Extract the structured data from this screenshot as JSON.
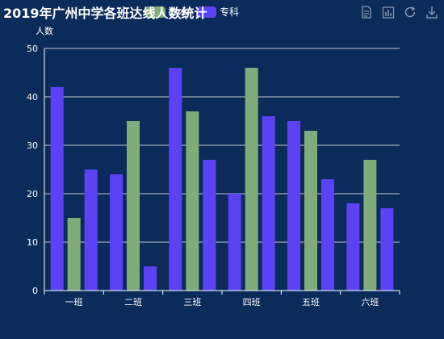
{
  "chart_data": {
    "type": "bar",
    "title": "2019年广州中学各班达线人数统计",
    "ylabel": "人数",
    "xlabel": "",
    "categories": [
      "一班",
      "二班",
      "三班",
      "四班",
      "五班",
      "六班"
    ],
    "ylim": [
      0,
      50
    ],
    "yticks": [
      0,
      10,
      20,
      30,
      40,
      50
    ],
    "grid": true,
    "legend_position": "top",
    "series": [
      {
        "name": "一本",
        "color": "#5b43f5",
        "values": [
          42,
          24,
          46,
          20,
          35,
          18
        ]
      },
      {
        "name": "二本",
        "color": "#7fac78",
        "values": [
          15,
          35,
          37,
          46,
          33,
          27
        ]
      },
      {
        "name": "专科",
        "color": "#5b43f5",
        "values": [
          25,
          5,
          27,
          36,
          23,
          17
        ]
      }
    ]
  },
  "legend": {
    "visible_labels": [
      "二本",
      "专科"
    ]
  },
  "toolbox": {
    "icons": [
      "data-view-icon",
      "bar-chart-icon",
      "restore-icon",
      "download-icon"
    ],
    "icon_color": "#8a9bb5"
  }
}
